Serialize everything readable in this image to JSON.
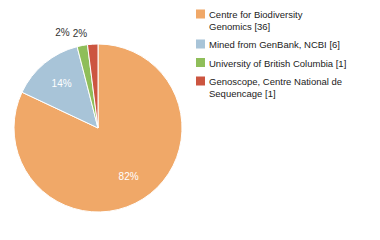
{
  "chart_data": {
    "type": "pie",
    "labels": [
      "Centre for Biodiversity\nGenomics [36]",
      "Mined from GenBank, NCBI [6]",
      "University of British Columbia [1]",
      "Genoscope, Centre National de\nSequencage [1]"
    ],
    "values": [
      82,
      14,
      2,
      2
    ],
    "value_labels": [
      "82%",
      "14%",
      "2%",
      "2%"
    ],
    "colors": [
      "#f0a868",
      "#a8c4d8",
      "#8fbe5a",
      "#cc5540"
    ],
    "data_labels": true,
    "legend": "right"
  }
}
